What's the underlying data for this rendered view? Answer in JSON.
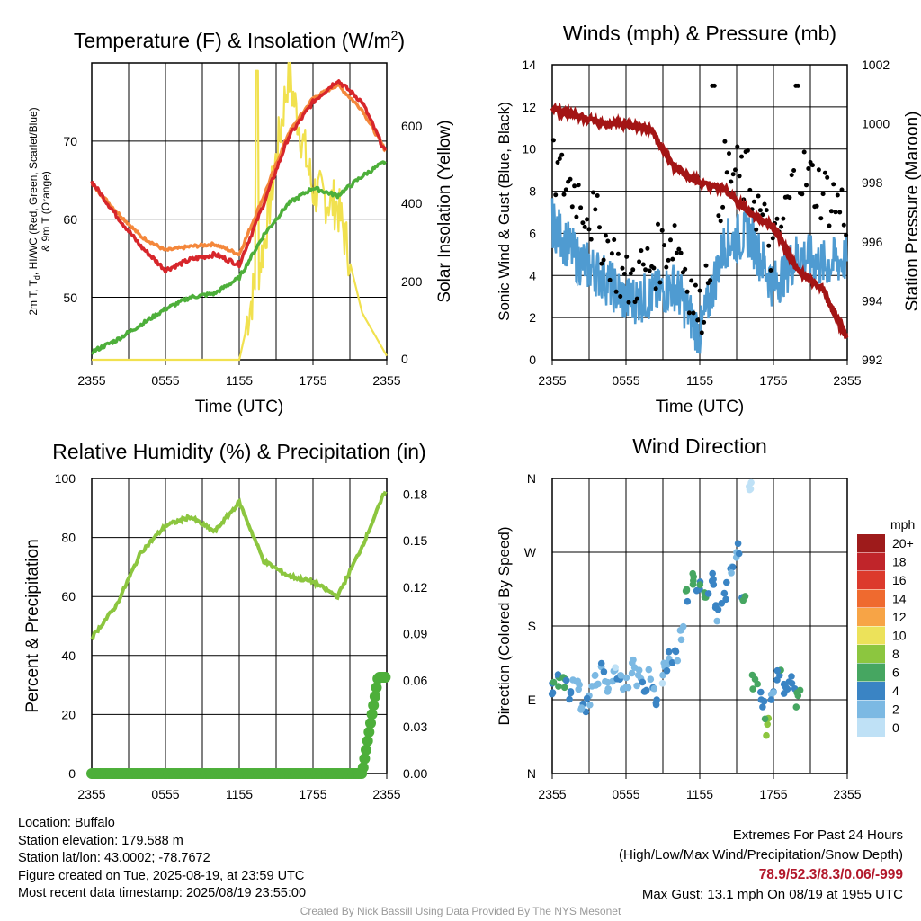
{
  "time_ticks": [
    "2355",
    "0555",
    "1155",
    "1755",
    "2355"
  ],
  "time_label": "Time (UTC)",
  "colors": {
    "pink": "#ffc0cb",
    "red": "#d7262b",
    "orange": "#f4873b",
    "green": "#4daf3a",
    "yellow": "#f1e14f",
    "blue": "#4f9bd1",
    "black": "#000000",
    "maroon": "#a31515",
    "rh_green": "#8cc63f",
    "precip_green": "#4daf3a"
  },
  "panels": {
    "temp": {
      "title_main": "Temperature (F) & Insolation (W/m",
      "title_sup": "2",
      "title_end": ")",
      "ylabel_left": "2m T, T",
      "ylabel_left_sub": "d",
      "ylabel_left_rest": ", HI/WC (Red, Green, Scarlet/Blue)",
      "ylabel_left2": "& 9m T (Orange)",
      "ylabel_right": "Solar Insolation (Yellow)",
      "left_ticks": [
        "50",
        "60",
        "70"
      ],
      "right_ticks": [
        "0",
        "200",
        "400",
        "600"
      ]
    },
    "wind": {
      "title": "Winds (mph) & Pressure (mb)",
      "ylabel_left": "Sonic Wind & Gust (Blue, Black)",
      "ylabel_right": "Station Pressure (Maroon)",
      "left_ticks": [
        "0",
        "2",
        "4",
        "6",
        "8",
        "10",
        "12",
        "14"
      ],
      "right_ticks": [
        "992",
        "994",
        "996",
        "998",
        "1000",
        "1002"
      ]
    },
    "rh": {
      "title": "Relative Humidity (%) & Precipitation (in)",
      "ylabel_left": "Percent & Precipitation",
      "left_ticks": [
        "0",
        "20",
        "40",
        "60",
        "80",
        "100"
      ],
      "right_ticks": [
        "0.00",
        "0.03",
        "0.06",
        "0.09",
        "0.12",
        "0.15",
        "0.18"
      ]
    },
    "dir": {
      "title": "Wind Direction",
      "ylabel_left": "Direction (Colored By Speed)",
      "left_ticks": [
        "N",
        "E",
        "S",
        "W",
        "N"
      ],
      "legend_title": "mph",
      "legend_labels": [
        "20+",
        "18",
        "16",
        "14",
        "12",
        "10",
        "8",
        "6",
        "4",
        "2",
        "0"
      ],
      "legend_colors": [
        "#9e1b1b",
        "#c0252a",
        "#dc3a2c",
        "#ef6a2f",
        "#f7a446",
        "#ece25a",
        "#8cc63f",
        "#46a661",
        "#3a84c4",
        "#7cb9e3",
        "#bfe1f6"
      ]
    }
  },
  "chart_data": [
    {
      "type": "line",
      "title": "Temperature (F) & Insolation (W/m2)",
      "xlabel": "Time (UTC)",
      "ylabel": "2m T, Td, HI/WC (Red, Green, Scarlet/Blue) & 9m T (Orange)",
      "y2label": "Solar Insolation (Yellow)",
      "x": [
        0,
        2,
        4,
        6,
        8,
        10,
        12,
        14,
        16,
        18,
        20,
        22,
        24
      ],
      "ylim": [
        42,
        80
      ],
      "y2lim": [
        0,
        760
      ],
      "series": [
        {
          "name": "2m T",
          "axis": "left",
          "values": [
            64.8,
            60.5,
            56.5,
            53.5,
            54.8,
            55.5,
            54.2,
            62.0,
            70.5,
            75.0,
            77.8,
            75.0,
            68.2
          ]
        },
        {
          "name": "9m T",
          "axis": "left",
          "values": [
            64.5,
            61.0,
            57.8,
            56.0,
            56.5,
            56.8,
            55.5,
            63.0,
            71.0,
            75.5,
            77.2,
            74.0,
            68.5
          ]
        },
        {
          "name": "Td",
          "axis": "left",
          "values": [
            43.0,
            44.5,
            46.5,
            48.5,
            50.0,
            50.5,
            52.5,
            58.0,
            62.0,
            64.0,
            63.0,
            65.5,
            67.5
          ]
        },
        {
          "name": "Insolation",
          "axis": "right",
          "values": [
            0,
            0,
            0,
            0,
            0,
            0,
            0,
            280,
            720,
            420,
            380,
            120,
            10
          ]
        }
      ]
    },
    {
      "type": "line",
      "title": "Winds (mph) & Pressure (mb)",
      "xlabel": "Time (UTC)",
      "ylabel": "Sonic Wind & Gust (Blue, Black)",
      "y2label": "Station Pressure (Maroon)",
      "x": [
        0,
        2,
        4,
        6,
        8,
        10,
        12,
        14,
        16,
        18,
        20,
        22,
        24
      ],
      "ylim": [
        0,
        14
      ],
      "y2lim": [
        992,
        1002
      ],
      "series": [
        {
          "name": "Sonic Wind",
          "axis": "left",
          "values": [
            6.5,
            4.8,
            4.0,
            2.8,
            3.0,
            3.5,
            1.2,
            5.5,
            6.0,
            3.5,
            5.0,
            4.5,
            4.8
          ]
        },
        {
          "name": "Gust",
          "axis": "left",
          "values": [
            9.0,
            8.0,
            6.0,
            3.6,
            4.5,
            6.0,
            2.0,
            9.0,
            8.5,
            5.0,
            9.0,
            8.0,
            7.0
          ]
        },
        {
          "name": "Station Pressure",
          "axis": "right",
          "values": [
            1000.5,
            1000.3,
            1000.0,
            1000.0,
            999.8,
            998.5,
            998.0,
            997.8,
            997.0,
            996.5,
            995.0,
            994.4,
            992.7
          ]
        }
      ]
    },
    {
      "type": "line",
      "title": "Relative Humidity (%) & Precipitation (in)",
      "ylabel": "Percent & Precipitation",
      "x": [
        0,
        2,
        4,
        6,
        8,
        10,
        12,
        14,
        16,
        18,
        20,
        22,
        24
      ],
      "ylim": [
        0,
        100
      ],
      "y2lim": [
        0,
        0.19
      ],
      "series": [
        {
          "name": "RH",
          "axis": "left",
          "values": [
            46,
            57,
            75,
            84,
            87,
            82,
            92,
            72,
            67,
            65,
            60,
            77,
            97
          ]
        },
        {
          "name": "Precipitation",
          "axis": "right",
          "values": [
            0,
            0,
            0,
            0,
            0,
            0,
            0,
            0,
            0,
            0,
            0,
            0.004,
            0.062
          ]
        }
      ]
    },
    {
      "type": "scatter",
      "title": "Wind Direction",
      "ylabel": "Direction (Colored By Speed)",
      "ylim": [
        0,
        360
      ],
      "points": [
        {
          "x": 0.0,
          "y": 110,
          "speed": 4
        },
        {
          "x": 0.5,
          "y": 118,
          "speed": 4
        },
        {
          "x": 1.0,
          "y": 105,
          "speed": 5
        },
        {
          "x": 1.5,
          "y": 100,
          "speed": 3
        },
        {
          "x": 2.0,
          "y": 112,
          "speed": 2
        },
        {
          "x": 2.5,
          "y": 85,
          "speed": 3
        },
        {
          "x": 3.0,
          "y": 95,
          "speed": 2
        },
        {
          "x": 3.5,
          "y": 120,
          "speed": 1
        },
        {
          "x": 4.0,
          "y": 130,
          "speed": 2
        },
        {
          "x": 4.5,
          "y": 100,
          "speed": 2
        },
        {
          "x": 5.0,
          "y": 125,
          "speed": 1
        },
        {
          "x": 5.5,
          "y": 115,
          "speed": 3
        },
        {
          "x": 6.0,
          "y": 105,
          "speed": 2
        },
        {
          "x": 6.5,
          "y": 135,
          "speed": 1
        },
        {
          "x": 7.0,
          "y": 120,
          "speed": 1
        },
        {
          "x": 7.5,
          "y": 100,
          "speed": 4
        },
        {
          "x": 8.0,
          "y": 115,
          "speed": 2
        },
        {
          "x": 8.5,
          "y": 90,
          "speed": 3
        },
        {
          "x": 9.0,
          "y": 120,
          "speed": 1
        },
        {
          "x": 9.5,
          "y": 140,
          "speed": 2
        },
        {
          "x": 10.0,
          "y": 150,
          "speed": 3
        },
        {
          "x": 10.5,
          "y": 175,
          "speed": 2
        },
        {
          "x": 11.0,
          "y": 210,
          "speed": 4
        },
        {
          "x": 11.5,
          "y": 240,
          "speed": 6
        },
        {
          "x": 12.0,
          "y": 225,
          "speed": 4
        },
        {
          "x": 12.5,
          "y": 215,
          "speed": 5
        },
        {
          "x": 13.0,
          "y": 235,
          "speed": 4
        },
        {
          "x": 13.5,
          "y": 200,
          "speed": 3
        },
        {
          "x": 14.0,
          "y": 220,
          "speed": 4
        },
        {
          "x": 14.5,
          "y": 250,
          "speed": 3
        },
        {
          "x": 15.0,
          "y": 270,
          "speed": 2
        },
        {
          "x": 15.5,
          "y": 215,
          "speed": 4
        },
        {
          "x": 16.0,
          "y": 350,
          "speed": 0
        },
        {
          "x": 16.5,
          "y": 115,
          "speed": 5
        },
        {
          "x": 17.0,
          "y": 90,
          "speed": 4
        },
        {
          "x": 17.5,
          "y": 60,
          "speed": 7
        },
        {
          "x": 18.0,
          "y": 100,
          "speed": 3
        },
        {
          "x": 18.5,
          "y": 120,
          "speed": 4
        },
        {
          "x": 19.0,
          "y": 105,
          "speed": 3
        },
        {
          "x": 19.5,
          "y": 110,
          "speed": 4
        },
        {
          "x": 20.0,
          "y": 95,
          "speed": 5
        }
      ]
    }
  ],
  "footer": {
    "location": "Location: Buffalo",
    "elevation": "Station elevation: 179.588 m",
    "latlon": "Station lat/lon: 43.0002; -78.7672",
    "created": "Figure created on Tue, 2025-08-19, at 23:59 UTC",
    "recent": "Most recent data timestamp: 2025/08/19 23:55:00",
    "extremes_title": "Extremes For Past 24 Hours",
    "extremes_sub": "(High/Low/Max Wind/Precipitation/Snow Depth)",
    "extremes_values": "78.9/52.3/8.3/0.06/-999",
    "max_gust": "Max Gust: 13.1 mph On 08/19 at 1955 UTC",
    "credit": "Created By Nick Bassill Using Data Provided By The NYS Mesonet"
  }
}
